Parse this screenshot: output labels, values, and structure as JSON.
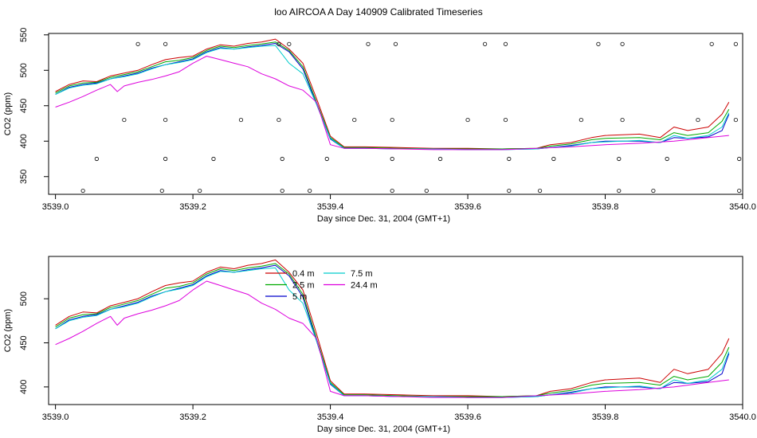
{
  "title": "loo AIRCOA A  Day 140909  Calibrated Timeseries",
  "chart_data": [
    {
      "type": "line",
      "xlabel": "Day since Dec. 31, 2004 (GMT+1)",
      "ylabel": "CO2 (ppm)",
      "xlim": [
        3538.99,
        3540.0
      ],
      "ylim": [
        325,
        552
      ],
      "xticks": [
        3539.0,
        3539.2,
        3539.4,
        3539.6,
        3539.8,
        3540.0
      ],
      "xtick_labels": [
        "3539.0",
        "3539.2",
        "3539.4",
        "3539.6",
        "3539.8",
        "3540.0"
      ],
      "yticks": [
        350,
        400,
        450,
        500,
        550
      ],
      "ytick_labels": [
        "350",
        "400",
        "450",
        "500",
        "550"
      ],
      "legend": null,
      "series": [
        {
          "color": "#cc0000",
          "x": [
            3539.0,
            3539.02,
            3539.04,
            3539.06,
            3539.08,
            3539.1,
            3539.12,
            3539.14,
            3539.16,
            3539.18,
            3539.2,
            3539.22,
            3539.24,
            3539.26,
            3539.28,
            3539.3,
            3539.32,
            3539.34,
            3539.36,
            3539.38,
            3539.4,
            3539.42,
            3539.45,
            3539.5,
            3539.55,
            3539.6,
            3539.65,
            3539.7,
            3539.72,
            3539.75,
            3539.78,
            3539.8,
            3539.85,
            3539.88,
            3539.9,
            3539.92,
            3539.95,
            3539.97,
            3539.98
          ],
          "y": [
            470,
            480,
            485,
            484,
            492,
            496,
            500,
            508,
            515,
            518,
            520,
            530,
            536,
            534,
            538,
            540,
            544,
            530,
            510,
            460,
            407,
            392,
            392,
            391,
            390,
            390,
            389,
            390,
            395,
            398,
            405,
            408,
            410,
            405,
            420,
            415,
            420,
            438,
            455
          ]
        },
        {
          "color": "#00aa00",
          "x": [
            3539.0,
            3539.02,
            3539.04,
            3539.06,
            3539.08,
            3539.1,
            3539.12,
            3539.14,
            3539.16,
            3539.18,
            3539.2,
            3539.22,
            3539.24,
            3539.26,
            3539.28,
            3539.3,
            3539.32,
            3539.34,
            3539.36,
            3539.38,
            3539.4,
            3539.42,
            3539.45,
            3539.5,
            3539.55,
            3539.6,
            3539.65,
            3539.7,
            3539.72,
            3539.75,
            3539.78,
            3539.8,
            3539.85,
            3539.88,
            3539.9,
            3539.92,
            3539.95,
            3539.97,
            3539.98
          ],
          "y": [
            468,
            478,
            482,
            483,
            490,
            494,
            498,
            505,
            512,
            514,
            518,
            528,
            534,
            532,
            535,
            537,
            540,
            528,
            505,
            455,
            405,
            391,
            391,
            390,
            389,
            389,
            389,
            390,
            393,
            396,
            402,
            404,
            405,
            402,
            412,
            408,
            412,
            428,
            445
          ]
        },
        {
          "color": "#0000cc",
          "x": [
            3539.0,
            3539.02,
            3539.04,
            3539.06,
            3539.08,
            3539.1,
            3539.12,
            3539.14,
            3539.16,
            3539.18,
            3539.2,
            3539.22,
            3539.24,
            3539.26,
            3539.28,
            3539.3,
            3539.32,
            3539.34,
            3539.36,
            3539.38,
            3539.4,
            3539.42,
            3539.45,
            3539.5,
            3539.55,
            3539.6,
            3539.65,
            3539.7,
            3539.72,
            3539.75,
            3539.78,
            3539.8,
            3539.85,
            3539.88,
            3539.9,
            3539.92,
            3539.95,
            3539.97,
            3539.98
          ],
          "y": [
            466,
            476,
            480,
            482,
            488,
            492,
            496,
            503,
            508,
            512,
            516,
            526,
            532,
            530,
            533,
            535,
            538,
            526,
            502,
            452,
            403,
            390,
            390,
            389,
            389,
            388,
            388,
            389,
            391,
            394,
            398,
            400,
            400,
            398,
            405,
            404,
            406,
            415,
            438
          ]
        },
        {
          "color": "#00cccc",
          "x": [
            3539.0,
            3539.02,
            3539.04,
            3539.06,
            3539.08,
            3539.1,
            3539.12,
            3539.14,
            3539.16,
            3539.18,
            3539.2,
            3539.22,
            3539.24,
            3539.26,
            3539.28,
            3539.3,
            3539.32,
            3539.34,
            3539.36,
            3539.38,
            3539.4,
            3539.42,
            3539.45,
            3539.5,
            3539.55,
            3539.6,
            3539.65,
            3539.7,
            3539.72,
            3539.75,
            3539.78,
            3539.8,
            3539.85,
            3539.88,
            3539.9,
            3539.92,
            3539.95,
            3539.97,
            3539.98
          ],
          "y": [
            466,
            475,
            479,
            481,
            488,
            491,
            495,
            502,
            508,
            511,
            515,
            525,
            531,
            530,
            532,
            534,
            535,
            510,
            495,
            452,
            404,
            390,
            390,
            389,
            389,
            388,
            388,
            389,
            391,
            393,
            398,
            399,
            401,
            398,
            408,
            404,
            408,
            420,
            440
          ]
        },
        {
          "color": "#dd00dd",
          "x": [
            3539.0,
            3539.02,
            3539.04,
            3539.06,
            3539.08,
            3539.09,
            3539.1,
            3539.12,
            3539.14,
            3539.16,
            3539.18,
            3539.2,
            3539.22,
            3539.24,
            3539.26,
            3539.28,
            3539.3,
            3539.32,
            3539.34,
            3539.36,
            3539.38,
            3539.4,
            3539.42,
            3539.45,
            3539.5,
            3539.55,
            3539.6,
            3539.65,
            3539.7,
            3539.75,
            3539.8,
            3539.85,
            3539.9,
            3539.95,
            3539.98
          ],
          "y": [
            448,
            455,
            463,
            472,
            480,
            470,
            478,
            483,
            487,
            492,
            498,
            510,
            520,
            515,
            510,
            505,
            495,
            488,
            478,
            472,
            455,
            395,
            390,
            390,
            389,
            388,
            388,
            388,
            390,
            392,
            395,
            397,
            400,
            405,
            408
          ]
        }
      ],
      "markers": {
        "x": [
          3539.04,
          3539.06,
          3539.1,
          3539.12,
          3539.155,
          3539.16,
          3539.16,
          3539.16,
          3539.21,
          3539.23,
          3539.27,
          3539.325,
          3539.325,
          3539.33,
          3539.33,
          3539.34,
          3539.37,
          3539.395,
          3539.435,
          3539.455,
          3539.49,
          3539.49,
          3539.49,
          3539.495,
          3539.54,
          3539.56,
          3539.6,
          3539.625,
          3539.655,
          3539.655,
          3539.66,
          3539.66,
          3539.705,
          3539.725,
          3539.765,
          3539.79,
          3539.82,
          3539.82,
          3539.825,
          3539.825,
          3539.87,
          3539.89,
          3539.935,
          3539.955,
          3539.99,
          3539.99,
          3539.995,
          3539.995
        ],
        "y": [
          330,
          375,
          430,
          537,
          330,
          375,
          430,
          537,
          330,
          375,
          430,
          430,
          537,
          375,
          330,
          537,
          330,
          375,
          430,
          537,
          330,
          375,
          430,
          537,
          330,
          375,
          430,
          537,
          537,
          430,
          375,
          330,
          330,
          375,
          430,
          537,
          330,
          375,
          430,
          537,
          330,
          375,
          430,
          537,
          537,
          430,
          375,
          330
        ]
      }
    },
    {
      "type": "line",
      "xlabel": "Day since Dec. 31, 2004 (GMT+1)",
      "ylabel": "CO2 (ppm)",
      "xlim": [
        3538.99,
        3540.0
      ],
      "ylim": [
        380,
        548
      ],
      "xticks": [
        3539.0,
        3539.2,
        3539.4,
        3539.6,
        3539.8,
        3540.0
      ],
      "xtick_labels": [
        "3539.0",
        "3539.2",
        "3539.4",
        "3539.6",
        "3539.8",
        "3540.0"
      ],
      "yticks": [
        400,
        450,
        500
      ],
      "ytick_labels": [
        "400",
        "450",
        "500"
      ],
      "legend": "top-center",
      "series": [
        {
          "name": "0.4 m",
          "color": "#cc0000",
          "x": [
            3539.0,
            3539.02,
            3539.04,
            3539.06,
            3539.08,
            3539.1,
            3539.12,
            3539.14,
            3539.16,
            3539.18,
            3539.2,
            3539.22,
            3539.24,
            3539.26,
            3539.28,
            3539.3,
            3539.32,
            3539.34,
            3539.36,
            3539.38,
            3539.4,
            3539.42,
            3539.45,
            3539.5,
            3539.55,
            3539.6,
            3539.65,
            3539.7,
            3539.72,
            3539.75,
            3539.78,
            3539.8,
            3539.85,
            3539.88,
            3539.9,
            3539.92,
            3539.95,
            3539.97,
            3539.98
          ],
          "y": [
            470,
            480,
            485,
            484,
            492,
            496,
            500,
            508,
            515,
            518,
            520,
            530,
            536,
            534,
            538,
            540,
            544,
            530,
            510,
            460,
            407,
            392,
            392,
            391,
            390,
            390,
            389,
            390,
            395,
            398,
            405,
            408,
            410,
            405,
            420,
            415,
            420,
            438,
            455
          ]
        },
        {
          "name": "2.5 m",
          "color": "#00aa00",
          "x": [
            3539.0,
            3539.02,
            3539.04,
            3539.06,
            3539.08,
            3539.1,
            3539.12,
            3539.14,
            3539.16,
            3539.18,
            3539.2,
            3539.22,
            3539.24,
            3539.26,
            3539.28,
            3539.3,
            3539.32,
            3539.34,
            3539.36,
            3539.38,
            3539.4,
            3539.42,
            3539.45,
            3539.5,
            3539.55,
            3539.6,
            3539.65,
            3539.7,
            3539.72,
            3539.75,
            3539.78,
            3539.8,
            3539.85,
            3539.88,
            3539.9,
            3539.92,
            3539.95,
            3539.97,
            3539.98
          ],
          "y": [
            468,
            478,
            482,
            483,
            490,
            494,
            498,
            505,
            512,
            514,
            518,
            528,
            534,
            532,
            535,
            537,
            540,
            528,
            505,
            455,
            405,
            391,
            391,
            390,
            389,
            389,
            389,
            390,
            393,
            396,
            402,
            404,
            405,
            402,
            412,
            408,
            412,
            428,
            445
          ]
        },
        {
          "name": "5 m",
          "color": "#0000cc",
          "x": [
            3539.0,
            3539.02,
            3539.04,
            3539.06,
            3539.08,
            3539.1,
            3539.12,
            3539.14,
            3539.16,
            3539.18,
            3539.2,
            3539.22,
            3539.24,
            3539.26,
            3539.28,
            3539.3,
            3539.32,
            3539.34,
            3539.36,
            3539.38,
            3539.4,
            3539.42,
            3539.45,
            3539.5,
            3539.55,
            3539.6,
            3539.65,
            3539.7,
            3539.72,
            3539.75,
            3539.78,
            3539.8,
            3539.85,
            3539.88,
            3539.9,
            3539.92,
            3539.95,
            3539.97,
            3539.98
          ],
          "y": [
            466,
            476,
            480,
            482,
            488,
            492,
            496,
            503,
            508,
            512,
            516,
            526,
            532,
            530,
            533,
            535,
            538,
            526,
            502,
            452,
            403,
            390,
            390,
            389,
            389,
            388,
            388,
            389,
            391,
            394,
            398,
            400,
            400,
            398,
            405,
            404,
            406,
            415,
            438
          ]
        },
        {
          "name": "7.5 m",
          "color": "#00cccc",
          "x": [
            3539.0,
            3539.02,
            3539.04,
            3539.06,
            3539.08,
            3539.1,
            3539.12,
            3539.14,
            3539.16,
            3539.18,
            3539.2,
            3539.22,
            3539.24,
            3539.26,
            3539.28,
            3539.3,
            3539.32,
            3539.34,
            3539.36,
            3539.38,
            3539.4,
            3539.42,
            3539.45,
            3539.5,
            3539.55,
            3539.6,
            3539.65,
            3539.7,
            3539.72,
            3539.75,
            3539.78,
            3539.8,
            3539.85,
            3539.88,
            3539.9,
            3539.92,
            3539.95,
            3539.97,
            3539.98
          ],
          "y": [
            466,
            475,
            479,
            481,
            488,
            491,
            495,
            502,
            508,
            511,
            515,
            525,
            531,
            530,
            532,
            534,
            535,
            510,
            495,
            452,
            404,
            390,
            390,
            389,
            389,
            388,
            388,
            389,
            391,
            393,
            398,
            399,
            401,
            398,
            408,
            404,
            408,
            420,
            440
          ]
        },
        {
          "name": "24.4 m",
          "color": "#dd00dd",
          "x": [
            3539.0,
            3539.02,
            3539.04,
            3539.06,
            3539.08,
            3539.09,
            3539.1,
            3539.12,
            3539.14,
            3539.16,
            3539.18,
            3539.2,
            3539.22,
            3539.24,
            3539.26,
            3539.28,
            3539.3,
            3539.32,
            3539.34,
            3539.36,
            3539.38,
            3539.4,
            3539.42,
            3539.45,
            3539.5,
            3539.55,
            3539.6,
            3539.65,
            3539.7,
            3539.75,
            3539.8,
            3539.85,
            3539.9,
            3539.95,
            3539.98
          ],
          "y": [
            448,
            455,
            463,
            472,
            480,
            470,
            478,
            483,
            487,
            492,
            498,
            510,
            520,
            515,
            510,
            505,
            495,
            488,
            478,
            472,
            455,
            395,
            390,
            390,
            389,
            388,
            388,
            388,
            390,
            392,
            395,
            397,
            400,
            405,
            408
          ]
        }
      ]
    }
  ]
}
